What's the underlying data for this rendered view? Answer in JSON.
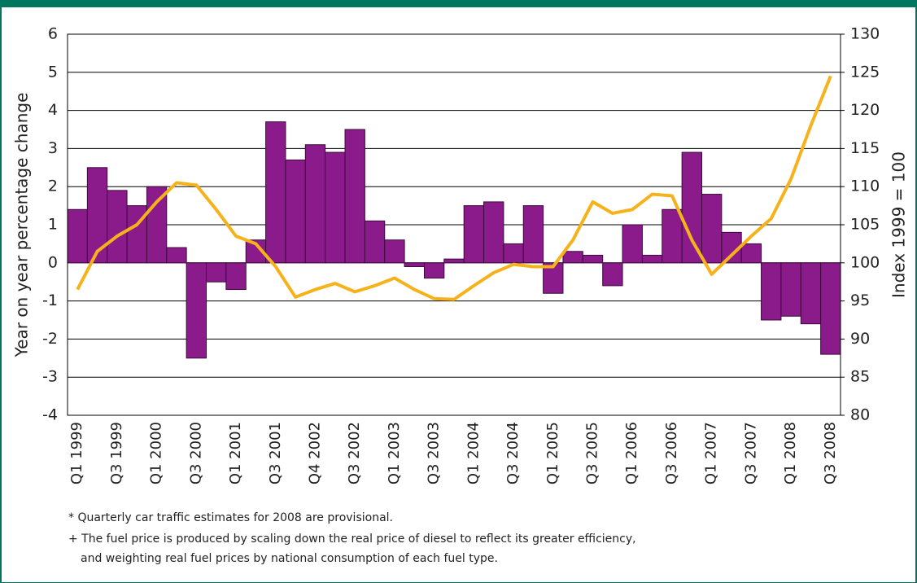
{
  "chart_data": {
    "type": "bar",
    "y_label": "Year on year percentage change",
    "y2_label": "Index 1999 = 100",
    "categories": [
      "Q1 1999",
      null,
      "Q3 1999",
      null,
      "Q1 2000",
      null,
      "Q3 2000",
      null,
      "Q1 2001",
      null,
      "Q3 2001",
      null,
      "Q4 2002",
      null,
      "Q3 2002",
      null,
      "Q1 2003",
      null,
      "Q3 2003",
      null,
      "Q1 2004",
      null,
      "Q3 2004",
      null,
      "Q1 2005",
      null,
      "Q3 2005",
      null,
      "Q1 2006",
      null,
      "Q3 2006",
      null,
      "Q1 2007",
      null,
      "Q3 2007",
      null,
      "Q1 2008",
      null,
      "Q3 2008"
    ],
    "series": [
      {
        "type": "bar",
        "color": "#8b1a8b",
        "values": [
          1.4,
          2.5,
          1.9,
          1.5,
          2.0,
          0.4,
          -2.5,
          -0.5,
          -0.7,
          0.6,
          3.7,
          2.7,
          3.1,
          2.9,
          3.5,
          1.1,
          0.6,
          -0.1,
          -0.4,
          0.1,
          1.5,
          1.6,
          0.5,
          1.5,
          -0.8,
          0.3,
          0.2,
          -0.6,
          1.0,
          0.2,
          1.4,
          2.9,
          1.8,
          0.8,
          0.5,
          -1.5,
          -1.4,
          -1.6,
          -2.4
        ]
      },
      {
        "type": "line",
        "axis": "y2",
        "color": "#f6b21b",
        "values": [
          96.5,
          101.5,
          103.5,
          105,
          108,
          110.5,
          110.2,
          107,
          103.5,
          102.5,
          99.5,
          95.5,
          96.5,
          97.3,
          96.2,
          97,
          98,
          96.5,
          95.3,
          95.2,
          97,
          98.7,
          99.8,
          99.5,
          99.5,
          103,
          108,
          106.5,
          107,
          109,
          108.8,
          103,
          98.5,
          101,
          103.5,
          105.8,
          111,
          118,
          124.5
        ]
      }
    ],
    "ylim": [
      -4,
      6
    ],
    "yticks": [
      -4,
      -3,
      -2,
      -1,
      0,
      1,
      2,
      3,
      4,
      5,
      6
    ],
    "y2lim": [
      80,
      130
    ],
    "y2ticks": [
      80,
      85,
      90,
      95,
      100,
      105,
      110,
      115,
      120,
      125,
      130
    ],
    "grid": true,
    "notes": [
      "*  Quarterly car traffic estimates for 2008 are provisional.",
      "+ The fuel price is produced by scaling down the real price of diesel to reflect its greater efficiency,",
      "and weighting real fuel prices by national consumption of each fuel type."
    ]
  }
}
